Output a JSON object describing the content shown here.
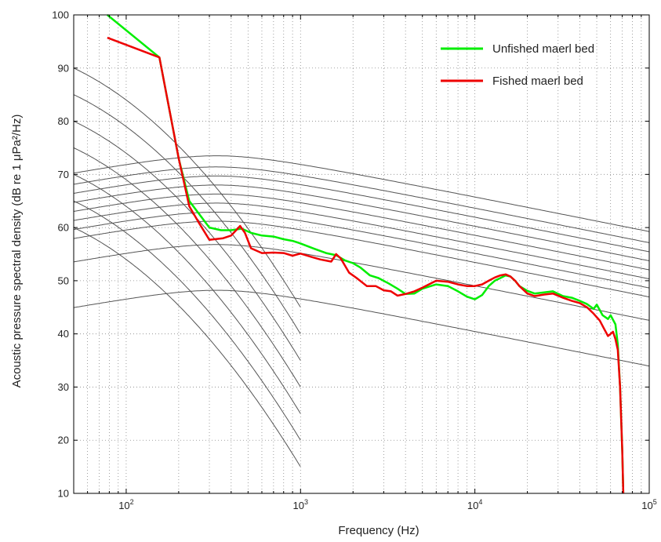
{
  "chart_data": {
    "type": "line",
    "title": "",
    "xlabel": "Frequency (Hz)",
    "ylabel": "Acoustic pressure spectral density (dB re 1 μPa²/Hz)",
    "xscale": "log",
    "xlim": [
      50,
      100000
    ],
    "ylim": [
      10,
      100
    ],
    "grid": "on (dotted, major + minor)",
    "legend_position": "top-right",
    "x_ticks": [
      {
        "value": 100,
        "base": "10",
        "exp": "2"
      },
      {
        "value": 1000,
        "base": "10",
        "exp": "3"
      },
      {
        "value": 10000,
        "base": "10",
        "exp": "4"
      },
      {
        "value": 100000,
        "base": "10",
        "exp": "5"
      }
    ],
    "y_ticks": [
      "10",
      "20",
      "30",
      "40",
      "50",
      "60",
      "70",
      "80",
      "90",
      "100"
    ],
    "series": [
      {
        "name": "Unfished maerl bed",
        "color": "#00ee00",
        "points": [
          [
            78,
            100
          ],
          [
            155,
            92
          ],
          [
            200,
            73
          ],
          [
            230,
            65
          ],
          [
            300,
            60
          ],
          [
            350,
            59.5
          ],
          [
            400,
            59.5
          ],
          [
            460,
            59.8
          ],
          [
            520,
            59
          ],
          [
            600,
            58.5
          ],
          [
            700,
            58.3
          ],
          [
            800,
            57.8
          ],
          [
            900,
            57.5
          ],
          [
            1000,
            57
          ],
          [
            1200,
            56
          ],
          [
            1400,
            55.2
          ],
          [
            1600,
            54.8
          ],
          [
            1800,
            53.8
          ],
          [
            2000,
            53.3
          ],
          [
            2200,
            52.5
          ],
          [
            2500,
            51
          ],
          [
            2800,
            50.5
          ],
          [
            3200,
            49.5
          ],
          [
            3600,
            48.5
          ],
          [
            4000,
            47.5
          ],
          [
            4500,
            47.6
          ],
          [
            5000,
            48.5
          ],
          [
            6000,
            49.3
          ],
          [
            7000,
            49
          ],
          [
            8000,
            48
          ],
          [
            9000,
            47
          ],
          [
            10000,
            46.5
          ],
          [
            11000,
            47.3
          ],
          [
            12000,
            49
          ],
          [
            13000,
            50
          ],
          [
            14000,
            50.5
          ],
          [
            15000,
            51
          ],
          [
            16000,
            50.8
          ],
          [
            17000,
            50
          ],
          [
            18000,
            49
          ],
          [
            20000,
            48.1
          ],
          [
            22000,
            47.6
          ],
          [
            25000,
            47.8
          ],
          [
            28000,
            48
          ],
          [
            32000,
            47.1
          ],
          [
            36000,
            46.8
          ],
          [
            40000,
            46.2
          ],
          [
            44000,
            45.6
          ],
          [
            48000,
            44.7
          ],
          [
            50000,
            45.5
          ],
          [
            54000,
            43.5
          ],
          [
            58000,
            42.8
          ],
          [
            60000,
            43.5
          ],
          [
            64000,
            41.8
          ],
          [
            66000,
            38
          ],
          [
            68000,
            30
          ],
          [
            70000,
            18
          ],
          [
            71000,
            10
          ]
        ]
      },
      {
        "name": "Fished maerl bed",
        "color": "#ee0000",
        "points": [
          [
            78,
            95.7
          ],
          [
            155,
            92
          ],
          [
            200,
            73
          ],
          [
            230,
            64
          ],
          [
            260,
            61
          ],
          [
            300,
            57.7
          ],
          [
            360,
            58
          ],
          [
            400,
            58.5
          ],
          [
            450,
            60.3
          ],
          [
            480,
            59
          ],
          [
            520,
            56.1
          ],
          [
            600,
            55.2
          ],
          [
            700,
            55.3
          ],
          [
            800,
            55.2
          ],
          [
            900,
            54.7
          ],
          [
            1000,
            55.1
          ],
          [
            1150,
            54.5
          ],
          [
            1300,
            54
          ],
          [
            1500,
            53.6
          ],
          [
            1600,
            55
          ],
          [
            1700,
            54.2
          ],
          [
            1900,
            51.5
          ],
          [
            2100,
            50.5
          ],
          [
            2400,
            49
          ],
          [
            2700,
            49
          ],
          [
            3000,
            48.2
          ],
          [
            3300,
            48
          ],
          [
            3600,
            47.2
          ],
          [
            4000,
            47.5
          ],
          [
            4500,
            48
          ],
          [
            5000,
            48.7
          ],
          [
            6000,
            50
          ],
          [
            7000,
            49.8
          ],
          [
            8000,
            49.3
          ],
          [
            9000,
            49
          ],
          [
            10000,
            49
          ],
          [
            11000,
            49.3
          ],
          [
            12000,
            50
          ],
          [
            13000,
            50.6
          ],
          [
            14000,
            51
          ],
          [
            15000,
            51.2
          ],
          [
            16000,
            50.8
          ],
          [
            17000,
            50
          ],
          [
            18000,
            49
          ],
          [
            20000,
            47.6
          ],
          [
            22000,
            47.1
          ],
          [
            25000,
            47.4
          ],
          [
            28000,
            47.6
          ],
          [
            32000,
            46.8
          ],
          [
            36000,
            46.2
          ],
          [
            40000,
            45.8
          ],
          [
            44000,
            45
          ],
          [
            48000,
            43.8
          ],
          [
            52000,
            42.5
          ],
          [
            55000,
            41
          ],
          [
            58000,
            39.6
          ],
          [
            60000,
            40
          ],
          [
            62000,
            40.4
          ],
          [
            64000,
            39
          ],
          [
            66000,
            37
          ],
          [
            68000,
            30
          ],
          [
            70000,
            18
          ],
          [
            71000,
            10
          ]
        ]
      }
    ],
    "background_curves": {
      "color": "#555555",
      "high_freq_family": [
        {
          "peak_db": 48.2
        },
        {
          "peak_db": 56.8
        },
        {
          "peak_db": 61.2
        },
        {
          "peak_db": 62.9
        },
        {
          "peak_db": 64.6
        },
        {
          "peak_db": 66.3
        },
        {
          "peak_db": 68.0
        },
        {
          "peak_db": 69.7
        },
        {
          "peak_db": 71.4
        },
        {
          "peak_db": 73.5
        }
      ],
      "low_freq_family": [
        {
          "start_db": 90.0,
          "end_db": 45.0
        },
        {
          "start_db": 85.0,
          "end_db": 40.0
        },
        {
          "start_db": 80.0,
          "end_db": 35.0
        },
        {
          "start_db": 75.0,
          "end_db": 30.0
        },
        {
          "start_db": 70.0,
          "end_db": 25.0
        },
        {
          "start_db": 65.0,
          "end_db": 20.0
        },
        {
          "start_db": 60.0,
          "end_db": 15.0
        }
      ]
    }
  }
}
